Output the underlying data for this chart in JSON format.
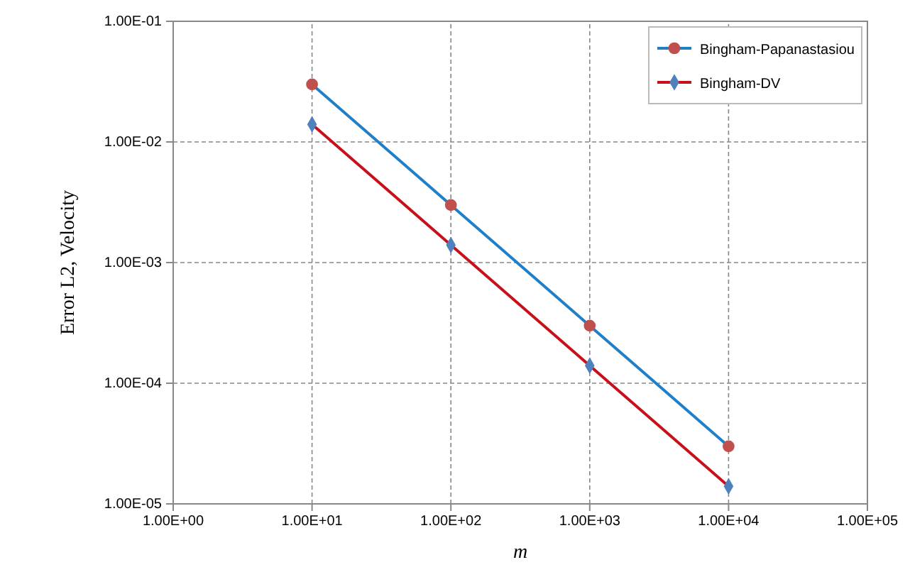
{
  "chart_data": {
    "type": "line",
    "xlabel": "m",
    "ylabel": "Error L2, Velocity",
    "log": "xy",
    "grid": true,
    "legend": "top right",
    "line_style": "solid",
    "xlim": [
      1,
      100000
    ],
    "ylim": [
      1e-05,
      0.1
    ],
    "xticks": [
      {
        "value": 1,
        "label": "1.00E+00"
      },
      {
        "value": 10,
        "label": "1.00E+01"
      },
      {
        "value": 100,
        "label": "1.00E+02"
      },
      {
        "value": 1000,
        "label": "1.00E+03"
      },
      {
        "value": 10000,
        "label": "1.00E+04"
      },
      {
        "value": 100000,
        "label": "1.00E+05"
      }
    ],
    "yticks": [
      {
        "value": 1e-05,
        "label": "1.00E-05"
      },
      {
        "value": 0.0001,
        "label": "1.00E-04"
      },
      {
        "value": 0.001,
        "label": "1.00E-03"
      },
      {
        "value": 0.01,
        "label": "1.00E-02"
      },
      {
        "value": 0.1,
        "label": "1.00E-01"
      }
    ],
    "x": [
      10,
      100,
      1000,
      10000
    ],
    "series": [
      {
        "name": "Bingham-Papanastasiou",
        "color": "#1f7fc9",
        "marker": "circle",
        "colors": [
          "#c0504d",
          "#c0504d",
          "#c0504d",
          "#c0504d"
        ],
        "values": [
          0.03,
          0.003,
          0.0003,
          3e-05
        ]
      },
      {
        "name": "Bingham-DV",
        "color": "#c8101a",
        "marker": "diamond",
        "colors": [
          "#4f81bd",
          "#4f81bd",
          "#4f81bd",
          "#4f81bd"
        ],
        "values": [
          0.014,
          0.0014,
          0.00014,
          1.4e-05
        ]
      }
    ]
  }
}
